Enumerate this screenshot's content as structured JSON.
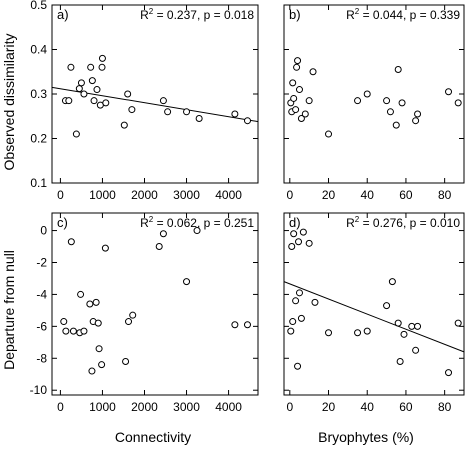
{
  "figure": {
    "xlabel_left": "Connectivity",
    "xlabel_right": "Bryophytes (%)",
    "ylabel_top": "Observed dissimilarity",
    "ylabel_bottom": "Departure from null"
  },
  "chart_data": [
    {
      "type": "scatter",
      "panel": "a)",
      "annotation": {
        "r2": "0.237",
        "p": "p = 0.018"
      },
      "xlim": [
        -200,
        4700
      ],
      "ylim": [
        0.1,
        0.5
      ],
      "xticks": [
        0,
        1000,
        2000,
        3000,
        4000
      ],
      "yticks": [
        0.1,
        0.2,
        0.3,
        0.4,
        0.5
      ],
      "xtick_labels": [
        "0",
        "1000",
        "2000",
        "3000",
        "4000"
      ],
      "ytick_labels": [
        "0.1",
        "0.2",
        "0.3",
        "0.4",
        "0.5"
      ],
      "show_xtick_labels": true,
      "show_ytick_labels": true,
      "points": [
        [
          120,
          0.285
        ],
        [
          200,
          0.285
        ],
        [
          250,
          0.36
        ],
        [
          380,
          0.21
        ],
        [
          450,
          0.312
        ],
        [
          500,
          0.325
        ],
        [
          560,
          0.3
        ],
        [
          720,
          0.36
        ],
        [
          760,
          0.33
        ],
        [
          800,
          0.285
        ],
        [
          870,
          0.31
        ],
        [
          950,
          0.275
        ],
        [
          990,
          0.36
        ],
        [
          1000,
          0.38
        ],
        [
          1080,
          0.28
        ],
        [
          1520,
          0.23
        ],
        [
          1600,
          0.3
        ],
        [
          1700,
          0.265
        ],
        [
          2450,
          0.285
        ],
        [
          2550,
          0.26
        ],
        [
          3000,
          0.26
        ],
        [
          3300,
          0.245
        ],
        [
          4150,
          0.255
        ],
        [
          4450,
          0.24
        ]
      ],
      "fit": {
        "x": [
          -200,
          4700
        ],
        "y": [
          0.315,
          0.238
        ]
      }
    },
    {
      "type": "scatter",
      "panel": "b)",
      "annotation": {
        "r2": "0.044",
        "p": "p = 0.339"
      },
      "xlim": [
        -3,
        90
      ],
      "ylim": [
        0.1,
        0.5
      ],
      "xticks": [
        0,
        20,
        40,
        60,
        80
      ],
      "yticks": [
        0.1,
        0.2,
        0.3,
        0.4,
        0.5
      ],
      "xtick_labels": [
        "0",
        "20",
        "40",
        "60",
        "80"
      ],
      "ytick_labels": [
        "0.1",
        "0.2",
        "0.3",
        "0.4",
        "0.5"
      ],
      "show_xtick_labels": true,
      "show_ytick_labels": false,
      "points": [
        [
          0.5,
          0.28
        ],
        [
          1,
          0.26
        ],
        [
          1.5,
          0.325
        ],
        [
          2,
          0.29
        ],
        [
          3,
          0.265
        ],
        [
          3.5,
          0.36
        ],
        [
          4,
          0.375
        ],
        [
          5,
          0.31
        ],
        [
          6,
          0.245
        ],
        [
          8,
          0.255
        ],
        [
          10,
          0.285
        ],
        [
          12,
          0.35
        ],
        [
          20,
          0.21
        ],
        [
          35,
          0.285
        ],
        [
          40,
          0.3
        ],
        [
          50,
          0.285
        ],
        [
          52,
          0.26
        ],
        [
          55,
          0.23
        ],
        [
          56,
          0.355
        ],
        [
          58,
          0.28
        ],
        [
          65,
          0.24
        ],
        [
          66,
          0.255
        ],
        [
          82,
          0.305
        ],
        [
          87,
          0.28
        ]
      ]
    },
    {
      "type": "scatter",
      "panel": "c)",
      "annotation": {
        "r2": "0.062",
        "p": "p = 0.251"
      },
      "xlim": [
        -200,
        4700
      ],
      "ylim": [
        -10.3,
        1.1
      ],
      "xticks": [
        0,
        1000,
        2000,
        3000,
        4000
      ],
      "yticks": [
        -10,
        -8,
        -6,
        -4,
        -2,
        0
      ],
      "xtick_labels": [
        "0",
        "1000",
        "2000",
        "3000",
        "4000"
      ],
      "ytick_labels": [
        "-10",
        "-8",
        "-6",
        "-4",
        "-2",
        "0"
      ],
      "show_xtick_labels": true,
      "show_ytick_labels": true,
      "points": [
        [
          80,
          -5.7
        ],
        [
          130,
          -6.3
        ],
        [
          260,
          -0.7
        ],
        [
          310,
          -6.3
        ],
        [
          460,
          -6.4
        ],
        [
          480,
          -4.0
        ],
        [
          560,
          -6.3
        ],
        [
          700,
          -4.6
        ],
        [
          750,
          -8.8
        ],
        [
          780,
          -5.7
        ],
        [
          850,
          -4.5
        ],
        [
          900,
          -5.8
        ],
        [
          920,
          -7.4
        ],
        [
          980,
          -8.4
        ],
        [
          1070,
          -1.1
        ],
        [
          1550,
          -8.2
        ],
        [
          1620,
          -5.7
        ],
        [
          1720,
          -5.3
        ],
        [
          2350,
          -1.0
        ],
        [
          2450,
          -0.2
        ],
        [
          3000,
          -3.2
        ],
        [
          3250,
          0.0
        ],
        [
          4150,
          -5.9
        ],
        [
          4450,
          -5.9
        ]
      ]
    },
    {
      "type": "scatter",
      "panel": "d)",
      "annotation": {
        "r2": "0.276",
        "p": "p = 0.010"
      },
      "xlim": [
        -3,
        90
      ],
      "ylim": [
        -10.3,
        1.1
      ],
      "xticks": [
        0,
        20,
        40,
        60,
        80
      ],
      "yticks": [
        -10,
        -8,
        -6,
        -4,
        -2,
        0
      ],
      "xtick_labels": [
        "0",
        "20",
        "40",
        "60",
        "80"
      ],
      "ytick_labels": [
        "-10",
        "-8",
        "-6",
        "-4",
        "-2",
        "0"
      ],
      "show_xtick_labels": true,
      "show_ytick_labels": false,
      "points": [
        [
          0.5,
          -6.3
        ],
        [
          1,
          -1.0
        ],
        [
          1.5,
          -5.7
        ],
        [
          2,
          -0.2
        ],
        [
          3,
          -4.4
        ],
        [
          4,
          -8.5
        ],
        [
          4.5,
          -0.7
        ],
        [
          5,
          -3.9
        ],
        [
          6,
          -5.5
        ],
        [
          7,
          -0.1
        ],
        [
          10,
          -0.8
        ],
        [
          13,
          -4.5
        ],
        [
          20,
          -6.4
        ],
        [
          35,
          -6.4
        ],
        [
          40,
          -6.3
        ],
        [
          50,
          -4.7
        ],
        [
          53,
          -3.2
        ],
        [
          56,
          -5.8
        ],
        [
          57,
          -8.2
        ],
        [
          59,
          -6.5
        ],
        [
          63,
          -6.0
        ],
        [
          65,
          -7.5
        ],
        [
          66,
          -6.0
        ],
        [
          82,
          -8.9
        ],
        [
          87,
          -5.8
        ]
      ],
      "fit": {
        "x": [
          -3,
          90
        ],
        "y": [
          -3.2,
          -7.6
        ]
      }
    }
  ]
}
